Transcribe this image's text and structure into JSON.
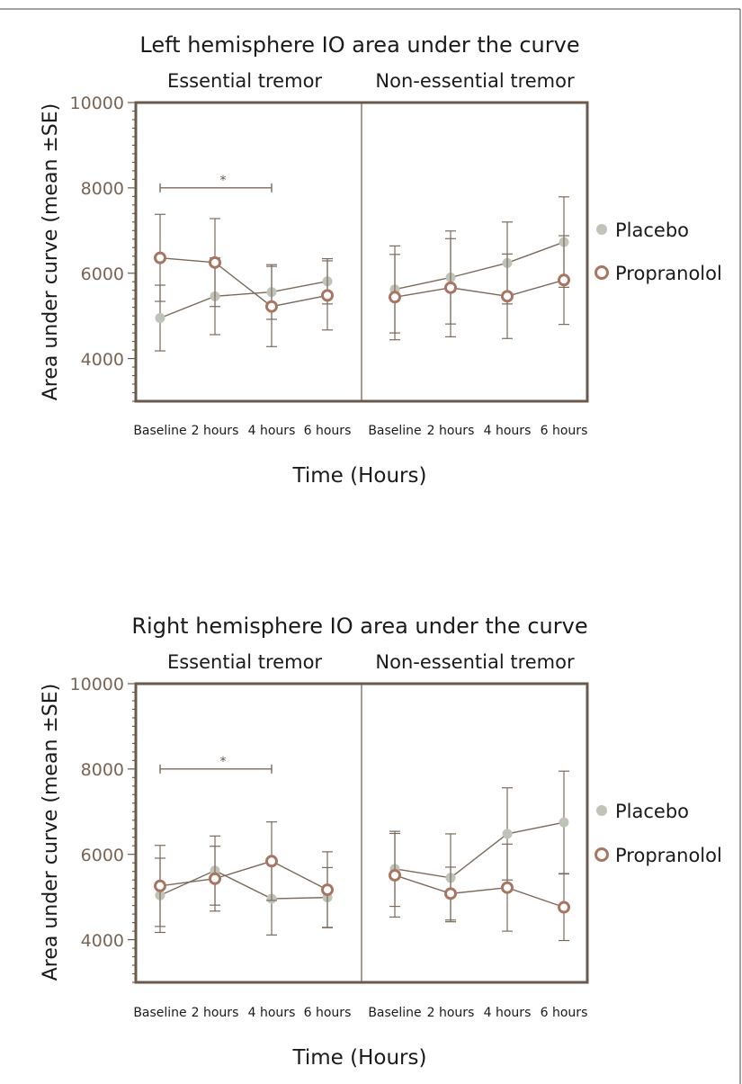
{
  "colors": {
    "axis": "#6b5a4c",
    "placebo": "#bfc3b8",
    "propranolol": "#a87562",
    "line": "#7b6a5c",
    "text": "#1a1a1a",
    "tick_text": "#7a6453"
  },
  "legend": {
    "placebo": "Placebo",
    "propranolol": "Propranolol"
  },
  "chart_data": [
    {
      "type": "line",
      "title": "Left hemisphere IO area under the curve",
      "panels": [
        "Essential tremor",
        "Non-essential tremor"
      ],
      "xlabel": "Time (Hours)",
      "ylabel": "Area under curve (mean ±SE)",
      "ylim": [
        3000,
        10000
      ],
      "yticks": [
        4000,
        6000,
        8000,
        10000
      ],
      "categories": [
        "Baseline",
        "2 hours",
        "4 hours",
        "6 hours"
      ],
      "significance": {
        "panel": 0,
        "from": 0,
        "to": 2,
        "y": 8000,
        "label": "*"
      },
      "series": [
        {
          "name": "Placebo",
          "panel": 0,
          "values": [
            4950,
            5460,
            5560,
            5810
          ],
          "err": [
            770,
            900,
            640,
            530
          ]
        },
        {
          "name": "Propranolol",
          "panel": 0,
          "values": [
            6360,
            6250,
            5220,
            5480
          ],
          "err": [
            1020,
            1030,
            940,
            810
          ]
        },
        {
          "name": "Placebo",
          "panel": 1,
          "values": [
            5620,
            5900,
            6240,
            6730
          ],
          "err": [
            1020,
            1090,
            960,
            1060
          ]
        },
        {
          "name": "Propranolol",
          "panel": 1,
          "values": [
            5440,
            5660,
            5460,
            5840
          ],
          "err": [
            1000,
            1150,
            990,
            1040
          ]
        }
      ]
    },
    {
      "type": "line",
      "title": "Right hemisphere IO area under the curve",
      "panels": [
        "Essential tremor",
        "Non-essential tremor"
      ],
      "xlabel": "Time (Hours)",
      "ylabel": "Area under curve (mean ±SE)",
      "ylim": [
        3000,
        10000
      ],
      "yticks": [
        4000,
        6000,
        8000,
        10000
      ],
      "categories": [
        "Baseline",
        "2 hours",
        "4 hours",
        "6 hours"
      ],
      "significance": {
        "panel": 0,
        "from": 0,
        "to": 2,
        "y": 8000,
        "label": "*"
      },
      "series": [
        {
          "name": "Placebo",
          "panel": 0,
          "values": [
            5040,
            5620,
            4960,
            4990
          ],
          "err": [
            870,
            810,
            850,
            700
          ]
        },
        {
          "name": "Propranolol",
          "panel": 0,
          "values": [
            5260,
            5430,
            5840,
            5170
          ],
          "err": [
            950,
            760,
            920,
            890
          ]
        },
        {
          "name": "Placebo",
          "panel": 1,
          "values": [
            5660,
            5450,
            6480,
            6750
          ],
          "err": [
            880,
            1030,
            1080,
            1200
          ]
        },
        {
          "name": "Propranolol",
          "panel": 1,
          "values": [
            5510,
            5080,
            5220,
            4760
          ],
          "err": [
            980,
            620,
            1020,
            780
          ]
        }
      ]
    }
  ]
}
